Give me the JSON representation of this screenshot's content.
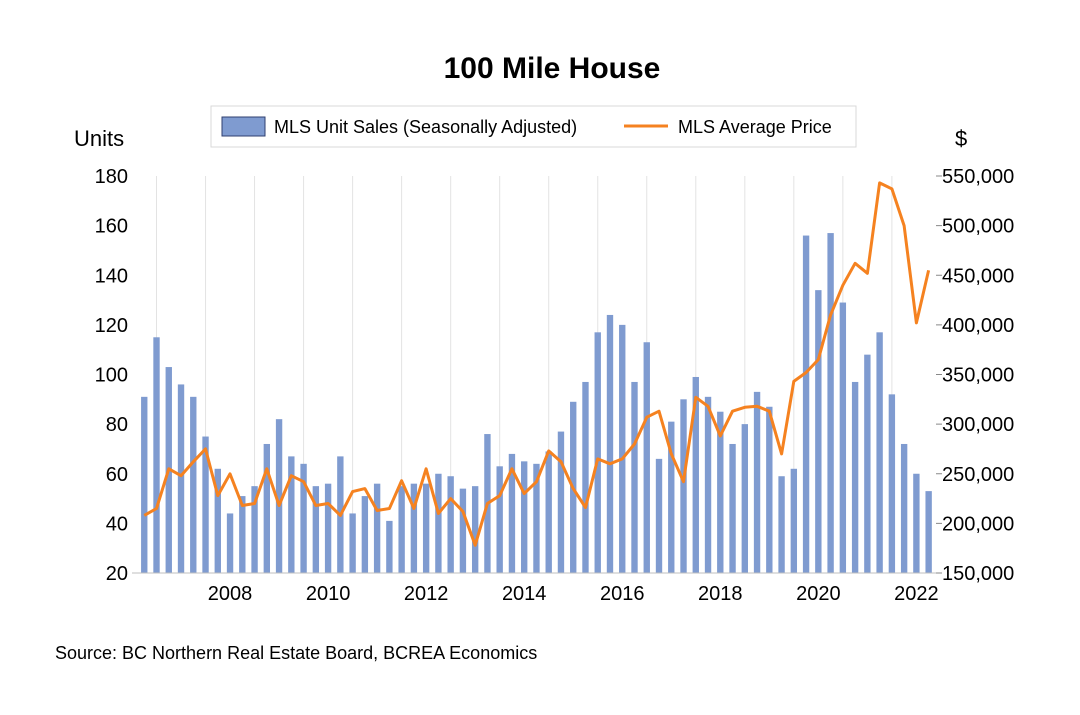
{
  "chart_data": {
    "type": "bar",
    "title": "100 Mile House",
    "left_axis": {
      "label": "Units",
      "ylim": [
        20,
        180
      ],
      "ticks": [
        20,
        40,
        60,
        80,
        100,
        120,
        140,
        160,
        180
      ]
    },
    "right_axis": {
      "label": "$",
      "ylim": [
        150000,
        550000
      ],
      "ticks": [
        150000,
        200000,
        250000,
        300000,
        350000,
        400000,
        450000,
        500000,
        550000
      ],
      "tick_labels": [
        "150,000",
        "200,000",
        "250,000",
        "300,000",
        "350,000",
        "400,000",
        "450,000",
        "500,000",
        "550,000"
      ]
    },
    "x_tick_labels": [
      "2008",
      "2010",
      "2012",
      "2014",
      "2016",
      "2018",
      "2020",
      "2022"
    ],
    "x_range": [
      2006.5,
      2022.9
    ],
    "grid": "vertical",
    "legend_position": "top-center",
    "series": [
      {
        "name": "MLS Unit Sales (Seasonally Adjusted)",
        "type": "bar",
        "axis": "left",
        "color": "#7F9BD0",
        "x": [
          2006.75,
          2007.0,
          2007.25,
          2007.5,
          2007.75,
          2008.0,
          2008.25,
          2008.5,
          2008.75,
          2009.0,
          2009.25,
          2009.5,
          2009.75,
          2010.0,
          2010.25,
          2010.5,
          2010.75,
          2011.0,
          2011.25,
          2011.5,
          2011.75,
          2012.0,
          2012.25,
          2012.5,
          2012.75,
          2013.0,
          2013.25,
          2013.5,
          2013.75,
          2014.0,
          2014.25,
          2014.5,
          2014.75,
          2015.0,
          2015.25,
          2015.5,
          2015.75,
          2016.0,
          2016.25,
          2016.5,
          2016.75,
          2017.0,
          2017.25,
          2017.5,
          2017.75,
          2018.0,
          2018.25,
          2018.5,
          2018.75,
          2019.0,
          2019.25,
          2019.5,
          2019.75,
          2020.0,
          2020.25,
          2020.5,
          2020.75,
          2021.0,
          2021.25,
          2021.5,
          2021.75,
          2022.0,
          2022.25,
          2022.5,
          2022.75
        ],
        "values": [
          91,
          115,
          103,
          96,
          91,
          75,
          62,
          44,
          51,
          55,
          72,
          82,
          67,
          64,
          55,
          56,
          67,
          44,
          51,
          56,
          41,
          55,
          56,
          56,
          60,
          59,
          54,
          55,
          76,
          63,
          68,
          65,
          64,
          69,
          77,
          89,
          97,
          117,
          124,
          120,
          97,
          113,
          66,
          81,
          90,
          99,
          91,
          85,
          72,
          80,
          93,
          87,
          59,
          62,
          156,
          134,
          157,
          129,
          97,
          108,
          117,
          92,
          72,
          60,
          53
        ]
      },
      {
        "name": "MLS Average Price",
        "type": "line",
        "axis": "right",
        "color": "#F58220",
        "x": [
          2006.75,
          2007.0,
          2007.25,
          2007.5,
          2007.75,
          2008.0,
          2008.25,
          2008.5,
          2008.75,
          2009.0,
          2009.25,
          2009.5,
          2009.75,
          2010.0,
          2010.25,
          2010.5,
          2010.75,
          2011.0,
          2011.25,
          2011.5,
          2011.75,
          2012.0,
          2012.25,
          2012.5,
          2012.75,
          2013.0,
          2013.25,
          2013.5,
          2013.75,
          2014.0,
          2014.25,
          2014.5,
          2014.75,
          2015.0,
          2015.25,
          2015.5,
          2015.75,
          2016.0,
          2016.25,
          2016.5,
          2016.75,
          2017.0,
          2017.25,
          2017.5,
          2017.75,
          2018.0,
          2018.25,
          2018.5,
          2018.75,
          2019.0,
          2019.25,
          2019.5,
          2019.75,
          2020.0,
          2020.25,
          2020.5,
          2020.75,
          2021.0,
          2021.25,
          2021.5,
          2021.75,
          2022.0,
          2022.25,
          2022.5,
          2022.75
        ],
        "values": [
          208000,
          215000,
          255000,
          248000,
          262000,
          275000,
          228000,
          250000,
          218000,
          220000,
          255000,
          218000,
          248000,
          242000,
          218000,
          220000,
          208000,
          232000,
          235000,
          213000,
          215000,
          243000,
          215000,
          255000,
          210000,
          225000,
          212000,
          178000,
          220000,
          228000,
          255000,
          230000,
          242000,
          273000,
          262000,
          235000,
          216000,
          265000,
          260000,
          265000,
          280000,
          307000,
          313000,
          270000,
          242000,
          327000,
          318000,
          288000,
          313000,
          317000,
          318000,
          313000,
          270000,
          343000,
          352000,
          365000,
          410000,
          440000,
          462000,
          452000,
          543000,
          537000,
          500000,
          402000,
          455000
        ]
      }
    ]
  },
  "source": "Source:  BC Northern Real Estate Board, BCREA Economics"
}
